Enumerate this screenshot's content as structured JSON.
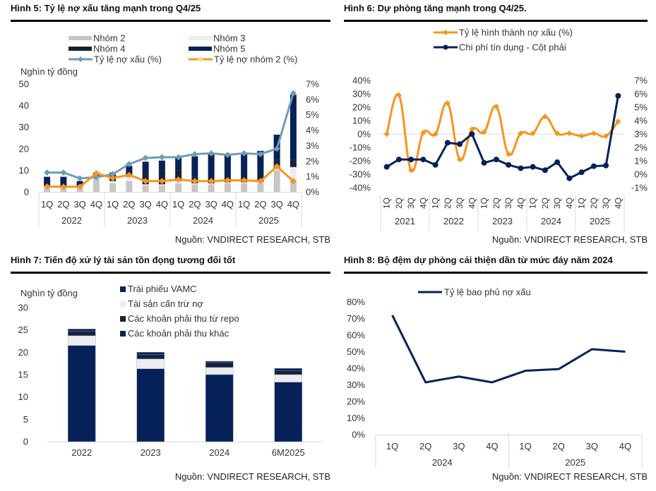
{
  "source_text": "Nguồn: VNDIRECT RESEARCH, STB",
  "colors": {
    "nhom2": "#c6c6c6",
    "nhom3": "#ededed",
    "nhom4": "#17213d",
    "nhom5": "#062158",
    "npl_line": "#6f9cb5",
    "nhom2_line": "#f7941d",
    "orange": "#f7941d",
    "navy": "#062158",
    "grid": "#d9d9d9"
  },
  "chart_data": [
    {
      "id": "fig5",
      "title": "Hình 5: Tỷ lệ nợ xấu tăng mạnh trong Q4/25",
      "type": "bar",
      "stacked": true,
      "ylabel": "Nghìn tỷ đồng",
      "ylim": [
        0,
        50
      ],
      "yticks": [
        "0",
        "10",
        "20",
        "30",
        "40",
        "50"
      ],
      "y2lim": [
        0,
        7
      ],
      "y2ticks": [
        "0%",
        "1%",
        "2%",
        "3%",
        "4%",
        "5%",
        "6%",
        "7%"
      ],
      "quarters": [
        "1Q",
        "2Q",
        "3Q",
        "4Q",
        "1Q",
        "2Q",
        "3Q",
        "4Q",
        "1Q",
        "2Q",
        "3Q",
        "4Q",
        "1Q",
        "2Q",
        "3Q",
        "4Q"
      ],
      "years": [
        "2022",
        "2023",
        "2024",
        "2025"
      ],
      "legend": [
        "Nhóm 2",
        "Nhóm 3",
        "Nhóm 4",
        "Nhóm 5",
        "Tỷ lệ nợ xấu (%)",
        "Tỷ lệ nợ nhóm 2 (%)"
      ],
      "series": [
        {
          "name": "Nhóm 2",
          "kind": "bar",
          "values": [
            2,
            2,
            2,
            6,
            4,
            5,
            3,
            3,
            4,
            3.5,
            3.5,
            4,
            4,
            4,
            10,
            5
          ]
        },
        {
          "name": "Nhóm 3",
          "kind": "bar",
          "values": [
            0.5,
            0.5,
            0.5,
            1,
            1,
            2,
            0.5,
            0.5,
            1,
            0.5,
            0.5,
            0.5,
            0.5,
            0.5,
            1,
            6.5
          ]
        },
        {
          "name": "Nhóm 4",
          "kind": "bar",
          "values": [
            0.5,
            0.5,
            0.5,
            0.5,
            0.5,
            1,
            5.5,
            6,
            5,
            3,
            4,
            4,
            4,
            4,
            4,
            3.5
          ]
        },
        {
          "name": "Nhóm 5",
          "kind": "bar",
          "values": [
            4,
            4,
            2,
            1.5,
            3.5,
            4,
            5,
            5,
            6,
            9.5,
            9.5,
            8.5,
            9.5,
            10.5,
            11.5,
            30
          ]
        },
        {
          "name": "Tỷ lệ nợ xấu (%)",
          "kind": "line",
          "axis": "right",
          "values": [
            1.25,
            1.25,
            0.88,
            0.95,
            1.15,
            1.8,
            2.2,
            2.25,
            2.25,
            2.45,
            2.5,
            2.4,
            2.5,
            2.45,
            2.8,
            6.4
          ]
        },
        {
          "name": "Tỷ lệ nợ nhóm 2 (%)",
          "kind": "line",
          "axis": "right",
          "values": [
            0.35,
            0.33,
            0.33,
            1.2,
            0.9,
            1.1,
            0.7,
            0.7,
            0.8,
            0.7,
            0.7,
            0.75,
            0.75,
            0.7,
            1.65,
            0.7
          ]
        }
      ]
    },
    {
      "id": "fig6",
      "title": "Hình 6: Dự phòng tăng mạnh trong Q4/25.",
      "type": "line",
      "ylim": [
        -40,
        40
      ],
      "yticks": [
        "-40%",
        "-30%",
        "-20%",
        "-10%",
        "0%",
        "10%",
        "20%",
        "30%",
        "40%"
      ],
      "y2lim": [
        -1,
        7
      ],
      "y2ticks": [
        "-1%",
        "0%",
        "1%",
        "2%",
        "3%",
        "4%",
        "5%",
        "6%",
        "7%"
      ],
      "quarters": [
        "1Q",
        "2Q",
        "3Q",
        "4Q",
        "1Q",
        "2Q",
        "3Q",
        "4Q",
        "1Q",
        "2Q",
        "3Q",
        "4Q",
        "1Q",
        "2Q",
        "3Q",
        "4Q",
        "1Q",
        "2Q",
        "3Q",
        "4Q"
      ],
      "years": [
        "2021",
        "2022",
        "2023",
        "2024",
        "2025"
      ],
      "series": [
        {
          "name": "Tỷ lệ hình thành nợ xấu (%)",
          "axis": "left",
          "smooth": true,
          "values": [
            0,
            29,
            -27,
            1,
            0,
            23,
            -19,
            3.5,
            1.5,
            20.5,
            -15,
            0.5,
            0.5,
            13,
            0.5,
            0.5,
            -1.5,
            0.5,
            -1.5,
            9.5
          ]
        },
        {
          "name": "Chi phí tín dụng - Cột phải",
          "axis": "right",
          "smooth": false,
          "values": [
            0.55,
            1.1,
            1.1,
            1.1,
            0.7,
            2.35,
            2.25,
            3.0,
            0.85,
            1.1,
            0.7,
            0.45,
            0.55,
            0.3,
            0.9,
            -0.3,
            0.15,
            0.6,
            0.65,
            5.85
          ]
        }
      ]
    },
    {
      "id": "fig7",
      "title": "Hình 7: Tiến độ xử lý tài sản tồn đọng tương đối tốt",
      "type": "bar",
      "stacked": true,
      "ylabel": "Nghìn tỷ đồng",
      "ylim": [
        0,
        30
      ],
      "yticks": [
        "0",
        "5",
        "10",
        "15",
        "20",
        "25",
        "30"
      ],
      "categories": [
        "2022",
        "2023",
        "2024",
        "6M2025"
      ],
      "legend": [
        "Trái phiếu VAMC",
        "Tài sản cấn trừ nợ",
        "Các khoản phải thu từ repo",
        "Các khoản phải thu khác"
      ],
      "series": [
        {
          "name": "Các khoản phải thu khác",
          "values": [
            21.5,
            16.3,
            15,
            13.3
          ]
        },
        {
          "name": "Tài sản cấn trừ nợ",
          "values": [
            2.2,
            2.2,
            1.6,
            1.7
          ]
        },
        {
          "name": "Các khoản phải thu từ repo",
          "values": [
            1,
            1,
            1.1,
            0.9
          ]
        },
        {
          "name": "Trái phiếu VAMC",
          "values": [
            0.5,
            0.5,
            0.3,
            0.5
          ]
        }
      ]
    },
    {
      "id": "fig8",
      "title": "Hình 8: Bộ đệm dự phòng cải thiện dần từ mức đáy năm 2024",
      "type": "line",
      "ylim": [
        0,
        80
      ],
      "yticks": [
        "0%",
        "10%",
        "20%",
        "30%",
        "40%",
        "50%",
        "60%",
        "70%",
        "80%"
      ],
      "quarters": [
        "1Q",
        "2Q",
        "3Q",
        "4Q",
        "1Q",
        "2Q",
        "3Q",
        "4Q"
      ],
      "years": [
        "2024",
        "2025"
      ],
      "series": [
        {
          "name": "Tỷ lệ bao phủ nợ xấu",
          "values": [
            72,
            31.5,
            35,
            31.5,
            38.5,
            39.5,
            51.5,
            50
          ]
        }
      ]
    }
  ]
}
